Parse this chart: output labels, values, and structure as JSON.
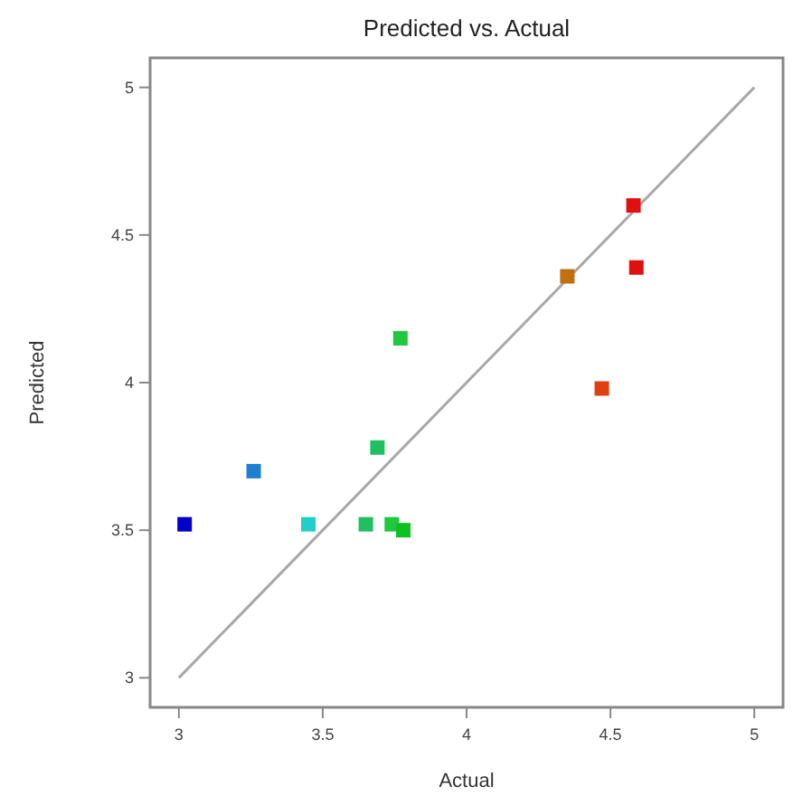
{
  "chart_data": {
    "type": "scatter",
    "title": "Predicted vs. Actual",
    "xlabel": "Actual",
    "ylabel": "Predicted",
    "xlim": [
      2.9,
      5.1
    ],
    "ylim": [
      2.9,
      5.1
    ],
    "xticks": [
      3,
      3.5,
      4,
      4.5,
      5
    ],
    "yticks": [
      3,
      3.5,
      4,
      4.5,
      5
    ],
    "grid": false,
    "series": [
      {
        "marker": "square",
        "x": [
          3.02,
          3.26,
          3.45,
          3.65,
          3.74,
          3.78,
          3.69,
          3.77,
          4.35,
          4.58,
          4.59,
          4.47
        ],
        "values": [
          3.52,
          3.7,
          3.52,
          3.52,
          3.52,
          3.5,
          3.78,
          4.15,
          4.36,
          4.6,
          4.39,
          3.98
        ],
        "colors": [
          "#0000c8",
          "#2080d0",
          "#20d0c8",
          "#20c060",
          "#20c840",
          "#10c020",
          "#20c060",
          "#20c840",
          "#c07010",
          "#e01010",
          "#e01010",
          "#e04010"
        ]
      },
      {
        "type": "line",
        "x": [
          3,
          5
        ],
        "values": [
          3,
          5
        ],
        "color": "#a8a8a8",
        "line_style": "solid"
      }
    ]
  }
}
